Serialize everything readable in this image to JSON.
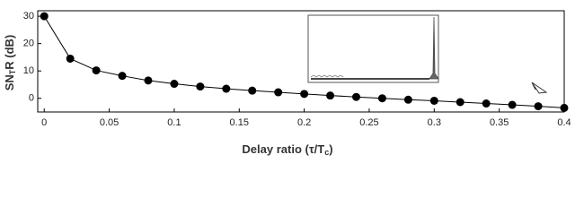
{
  "chart_data": {
    "type": "line",
    "xlabel": {
      "text": "Delay ratio (τ/T",
      "sub": "c",
      "end": ")"
    },
    "ylabel": {
      "text": "SN",
      "sub": "T",
      "end": "R (dB)"
    },
    "x": [
      0,
      0.02,
      0.04,
      0.06,
      0.08,
      0.1,
      0.12,
      0.14,
      0.16,
      0.18,
      0.2,
      0.22,
      0.24,
      0.26,
      0.28,
      0.3,
      0.32,
      0.34,
      0.36,
      0.38,
      0.4
    ],
    "series": [
      {
        "color": "#000000",
        "values": [
          30,
          14.5,
          10.2,
          8.2,
          6.5,
          5.3,
          4.3,
          3.5,
          2.8,
          2.2,
          1.6,
          1.0,
          0.5,
          0,
          -0.5,
          -0.9,
          -1.4,
          -1.9,
          -2.4,
          -2.9,
          -3.5
        ]
      }
    ],
    "xlim": [
      -0.005,
      0.4
    ],
    "ylim": [
      -5,
      32
    ],
    "xticks": [
      0,
      0.05,
      0.1,
      0.15,
      0.2,
      0.25,
      0.3,
      0.35,
      0.4
    ],
    "yticks": [
      0,
      10,
      20,
      30
    ]
  }
}
